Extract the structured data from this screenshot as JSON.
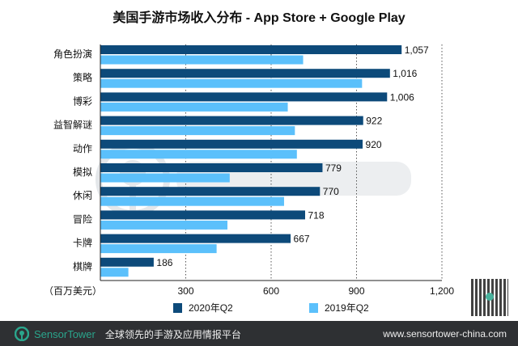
{
  "chart_data": {
    "type": "bar",
    "orientation": "horizontal",
    "title": "美国手游市场收入分布 - App Store + Google Play",
    "xlabel": "（百万美元）",
    "xlim": [
      0,
      1200
    ],
    "xticks": [
      "300",
      "600",
      "900",
      "1,200"
    ],
    "xtick_values": [
      300,
      600,
      900,
      1200
    ],
    "grid": "vertical dotted",
    "legend_position": "bottom",
    "categories": [
      "角色扮演",
      "策略",
      "博彩",
      "益智解谜",
      "动作",
      "模拟",
      "休闲",
      "冒险",
      "卡牌",
      "棋牌"
    ],
    "series": [
      {
        "name": "2020年Q2",
        "color": "#0d4a7a",
        "values": [
          1057,
          1016,
          1006,
          922,
          920,
          779,
          770,
          718,
          667,
          186
        ],
        "labels": [
          "1,057",
          "1,016",
          "1,006",
          "922",
          "920",
          "779",
          "770",
          "718",
          "667",
          "186"
        ]
      },
      {
        "name": "2019年Q2",
        "color": "#5bc0fb",
        "values": [
          711,
          918,
          657,
          682,
          689,
          453,
          644,
          445,
          407,
          97
        ]
      }
    ]
  },
  "watermark": "SensorTower",
  "footer": {
    "brand": "SensorTower",
    "slogan": "全球领先的手游及应用情报平台",
    "url": "www.sensortower-china.com",
    "logo_color": "#2aa58c"
  }
}
